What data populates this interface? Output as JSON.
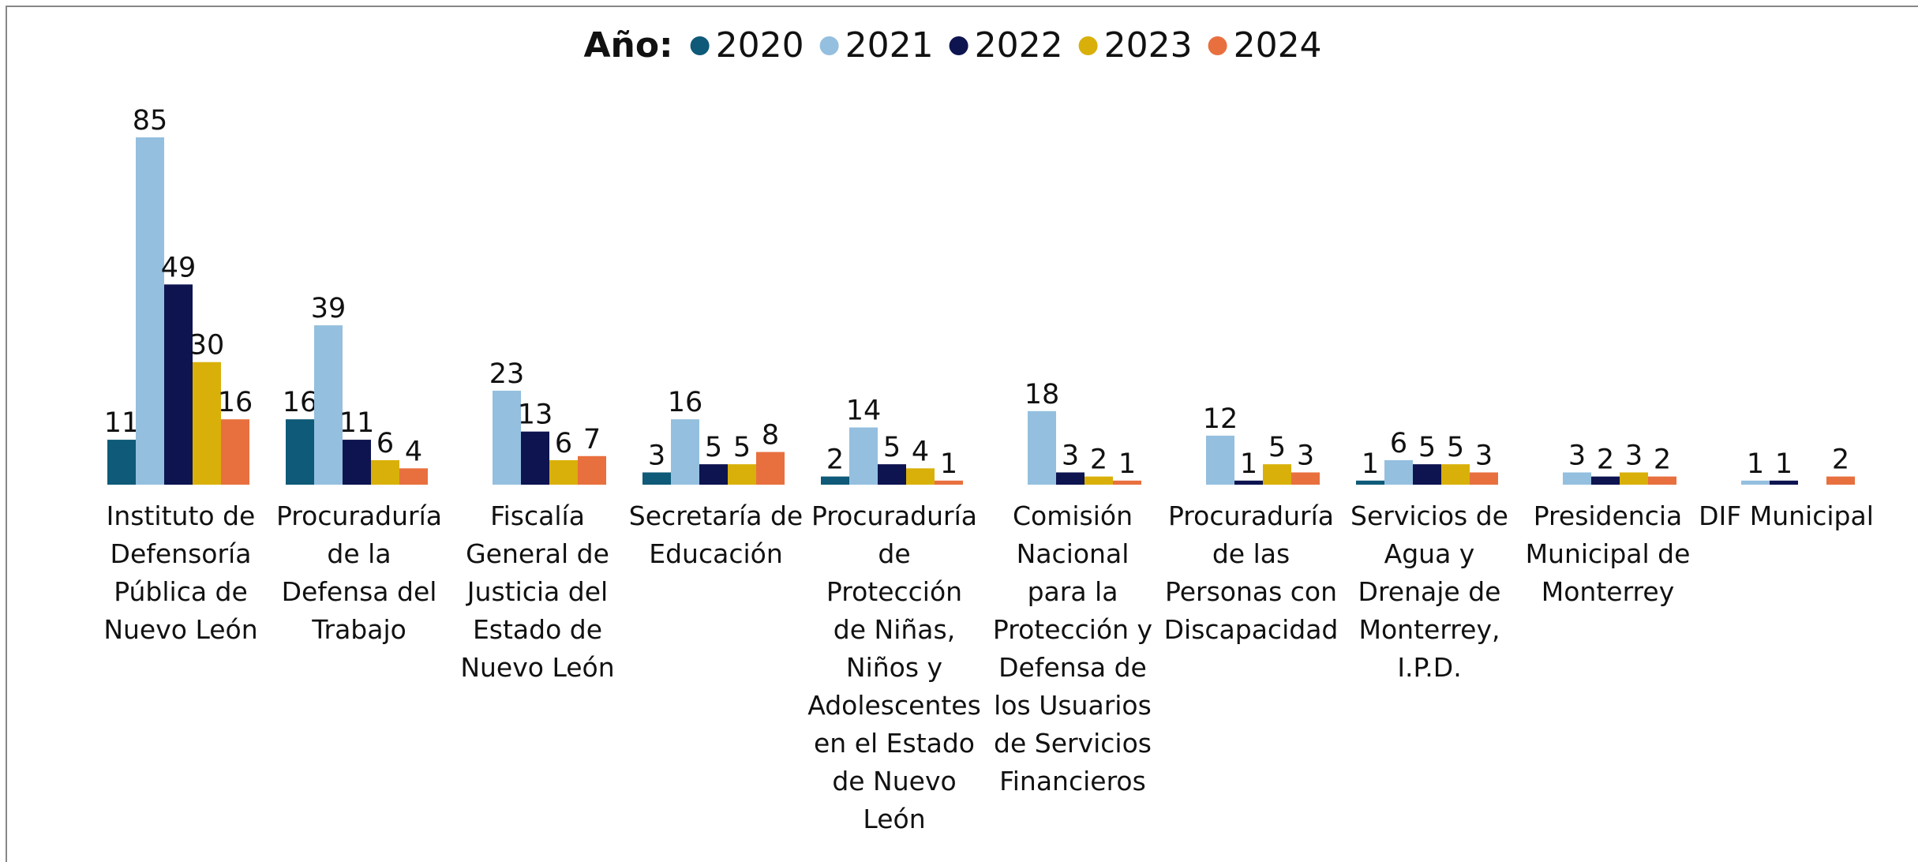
{
  "chart_data": {
    "type": "bar",
    "legend_title": "Año:",
    "legend_position": "top",
    "categories": [
      "Instituto de Defensoría Pública de Nuevo León",
      "Procuraduría de la Defensa del Trabajo",
      "Fiscalía General de Justicia del Estado de Nuevo León",
      "Secretaría de Educación",
      "Procuraduría de Protección de Niñas, Niños y Adolescentes en el Estado de Nuevo León",
      "Comisión Nacional para la Protección y Defensa de los Usuarios de Servicios Financieros",
      "Procuraduría de las Personas con Discapacidad",
      "Servicios de Agua y Drenaje de Monterrey, I.P.D.",
      "Presidencia Municipal de Monterrey",
      "DIF Municipal"
    ],
    "series": [
      {
        "name": "2020",
        "color": "#0e5a78",
        "values": [
          11,
          16,
          null,
          3,
          2,
          null,
          null,
          1,
          null,
          null
        ]
      },
      {
        "name": "2021",
        "color": "#94bfdf",
        "values": [
          85,
          39,
          23,
          16,
          14,
          18,
          12,
          6,
          3,
          1
        ]
      },
      {
        "name": "2022",
        "color": "#0d1450",
        "values": [
          49,
          11,
          13,
          5,
          5,
          3,
          1,
          5,
          2,
          1
        ]
      },
      {
        "name": "2023",
        "color": "#d9b00a",
        "values": [
          30,
          6,
          6,
          5,
          4,
          2,
          5,
          5,
          3,
          null
        ]
      },
      {
        "name": "2024",
        "color": "#e8703f",
        "values": [
          16,
          4,
          7,
          8,
          1,
          1,
          3,
          3,
          2,
          2
        ]
      }
    ]
  }
}
